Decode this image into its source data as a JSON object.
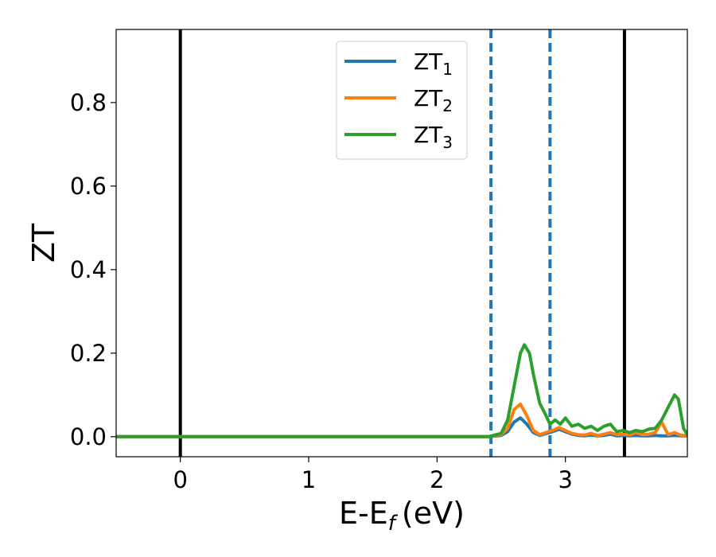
{
  "chart_data": {
    "type": "line",
    "xlabel": "E-E",
    "xlabel_sub": "f",
    "xlabel_unit": "(eV)",
    "ylabel": "ZT",
    "xlim": [
      -0.5,
      3.95
    ],
    "ylim": [
      -0.048,
      0.975
    ],
    "xticks": [
      0,
      1,
      2,
      3
    ],
    "yticks": [
      0.0,
      0.2,
      0.4,
      0.6,
      0.8
    ],
    "ytick_labels": [
      "0.0",
      "0.2",
      "0.4",
      "0.6",
      "0.8"
    ],
    "grid": false,
    "legend_position": "top-center",
    "vlines": [
      {
        "x": 0.0,
        "style": "solid",
        "color": "#000000"
      },
      {
        "x": 3.46,
        "style": "solid",
        "color": "#000000"
      },
      {
        "x": 2.42,
        "style": "dashed",
        "color": "#1f77b4"
      },
      {
        "x": 2.88,
        "style": "dashed",
        "color": "#1f77b4"
      }
    ],
    "series": [
      {
        "name": "ZT",
        "sub": "1",
        "color": "#1f77b4",
        "x": [
          -0.5,
          2.4,
          2.5,
          2.55,
          2.6,
          2.65,
          2.7,
          2.75,
          2.8,
          2.9,
          2.95,
          3.0,
          3.05,
          3.1,
          3.15,
          3.2,
          3.25,
          3.3,
          3.35,
          3.4,
          3.45,
          3.5,
          3.55,
          3.6,
          3.65,
          3.7,
          3.75,
          3.8,
          3.85,
          3.9,
          3.95
        ],
        "y": [
          0,
          0,
          0.003,
          0.012,
          0.035,
          0.045,
          0.03,
          0.01,
          0.003,
          0.012,
          0.018,
          0.012,
          0.006,
          0.003,
          0.002,
          0.004,
          0.002,
          0.003,
          0.006,
          0.002,
          0.003,
          0.002,
          0.003,
          0.002,
          0.002,
          0.003,
          0.002,
          0.002,
          0.003,
          0.002,
          0.002
        ]
      },
      {
        "name": "ZT",
        "sub": "2",
        "color": "#ff7f0e",
        "x": [
          -0.5,
          2.4,
          2.5,
          2.55,
          2.6,
          2.65,
          2.7,
          2.75,
          2.8,
          2.9,
          2.95,
          3.0,
          3.05,
          3.1,
          3.15,
          3.2,
          3.25,
          3.3,
          3.35,
          3.4,
          3.45,
          3.5,
          3.55,
          3.6,
          3.65,
          3.7,
          3.75,
          3.8,
          3.85,
          3.9,
          3.95
        ],
        "y": [
          0,
          0,
          0.005,
          0.02,
          0.065,
          0.078,
          0.05,
          0.015,
          0.005,
          0.015,
          0.022,
          0.015,
          0.008,
          0.005,
          0.004,
          0.008,
          0.003,
          0.006,
          0.01,
          0.005,
          0.006,
          0.004,
          0.01,
          0.005,
          0.006,
          0.01,
          0.035,
          0.005,
          0.01,
          0.003,
          0.004
        ]
      },
      {
        "name": "ZT",
        "sub": "3",
        "color": "#2ca02c",
        "x": [
          -0.5,
          2.4,
          2.5,
          2.55,
          2.6,
          2.65,
          2.68,
          2.72,
          2.75,
          2.8,
          2.85,
          2.88,
          2.92,
          2.96,
          3.0,
          3.05,
          3.1,
          3.15,
          3.2,
          3.25,
          3.3,
          3.35,
          3.4,
          3.45,
          3.5,
          3.55,
          3.6,
          3.65,
          3.7,
          3.75,
          3.8,
          3.85,
          3.88,
          3.92,
          3.95
        ],
        "y": [
          0,
          0,
          0.008,
          0.04,
          0.12,
          0.2,
          0.22,
          0.2,
          0.15,
          0.08,
          0.05,
          0.03,
          0.04,
          0.03,
          0.045,
          0.025,
          0.03,
          0.02,
          0.025,
          0.015,
          0.025,
          0.03,
          0.012,
          0.015,
          0.01,
          0.015,
          0.012,
          0.018,
          0.02,
          0.04,
          0.07,
          0.1,
          0.09,
          0.02,
          0.005
        ]
      }
    ]
  }
}
